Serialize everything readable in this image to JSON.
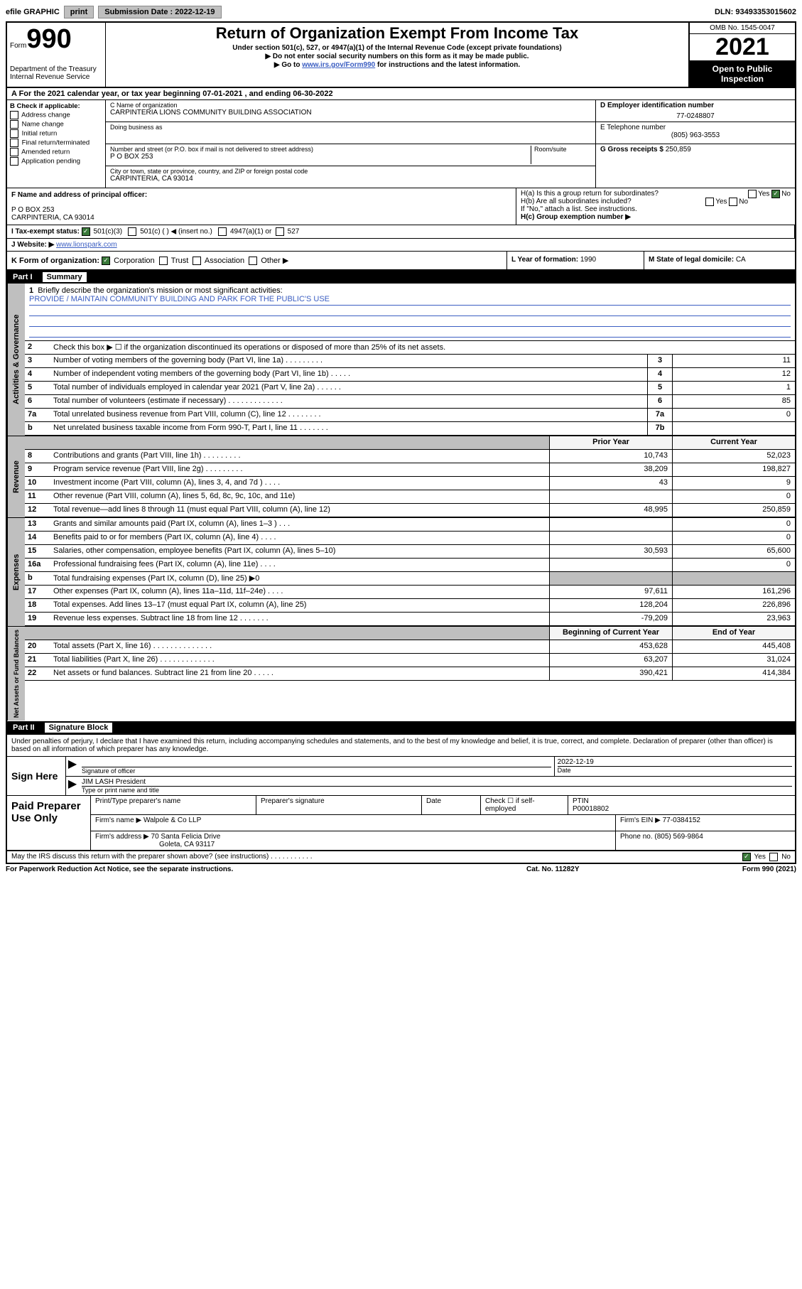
{
  "topbar": {
    "efile_label": "efile GRAPHIC",
    "print_btn": "print",
    "sub_date_label": "Submission Date : 2022-12-19",
    "dln": "DLN: 93493353015602"
  },
  "header": {
    "form_prefix": "Form",
    "form_number": "990",
    "dept": "Department of the Treasury",
    "irs": "Internal Revenue Service",
    "title": "Return of Organization Exempt From Income Tax",
    "sub1": "Under section 501(c), 527, or 4947(a)(1) of the Internal Revenue Code (except private foundations)",
    "sub2": "▶ Do not enter social security numbers on this form as it may be made public.",
    "sub3_prefix": "▶ Go to ",
    "sub3_link": "www.irs.gov/Form990",
    "sub3_suffix": " for instructions and the latest information.",
    "omb": "OMB No. 1545-0047",
    "year": "2021",
    "inspection1": "Open to Public",
    "inspection2": "Inspection"
  },
  "row_a": {
    "text": "A For the 2021 calendar year, or tax year beginning 07-01-2021   , and ending 06-30-2022"
  },
  "col_b": {
    "header": "B Check if applicable:",
    "items": [
      "Address change",
      "Name change",
      "Initial return",
      "Final return/terminated",
      "Amended return",
      "Application pending"
    ]
  },
  "col_c": {
    "name_label": "C Name of organization",
    "name": "CARPINTERIA LIONS COMMUNITY BUILDING ASSOCIATION",
    "dba_label": "Doing business as",
    "addr_label": "Number and street (or P.O. box if mail is not delivered to street address)",
    "room_label": "Room/suite",
    "addr": "P O BOX 253",
    "city_label": "City or town, state or province, country, and ZIP or foreign postal code",
    "city": "CARPINTERIA, CA  93014"
  },
  "col_d": {
    "ein_label": "D Employer identification number",
    "ein": "77-0248807",
    "phone_label": "E Telephone number",
    "phone": "(805) 963-3553",
    "gross_label": "G Gross receipts $",
    "gross": "250,859"
  },
  "row_f": {
    "label": "F  Name and address of principal officer:",
    "addr1": "P O BOX 253",
    "addr2": "CARPINTERIA, CA  93014"
  },
  "row_h": {
    "ha": "H(a)  Is this a group return for subordinates?",
    "hb": "H(b)  Are all subordinates included?",
    "hb_note": "If \"No,\" attach a list. See instructions.",
    "hc": "H(c)  Group exemption number ▶",
    "yes": "Yes",
    "no": "No"
  },
  "row_i": {
    "label": "I   Tax-exempt status:",
    "opt1": "501(c)(3)",
    "opt2": "501(c) (  ) ◀ (insert no.)",
    "opt3": "4947(a)(1) or",
    "opt4": "527"
  },
  "row_j": {
    "label": "J   Website: ▶",
    "url": "www.lionspark.com"
  },
  "row_k": {
    "label": "K Form of organization:",
    "opts": [
      "Corporation",
      "Trust",
      "Association",
      "Other ▶"
    ],
    "year_label": "L Year of formation: ",
    "year": "1990",
    "state_label": "M State of legal domicile: ",
    "state": "CA"
  },
  "part1": {
    "label": "Part I",
    "title": "Summary"
  },
  "governance": {
    "side": "Activities & Governance",
    "q1_label": "1",
    "q1": "Briefly describe the organization's mission or most significant activities:",
    "q1_ans": "PROVIDE / MAINTAIN COMMUNITY BUILDING AND PARK FOR THE PUBLIC'S USE",
    "q2_label": "2",
    "q2": "Check this box ▶ ☐  if the organization discontinued its operations or disposed of more than 25% of its net assets.",
    "rows": [
      {
        "n": "3",
        "desc": "Number of voting members of the governing body (Part VI, line 1a)   .    .    .    .    .    .    .    .    .",
        "box": "3",
        "val": "11"
      },
      {
        "n": "4",
        "desc": "Number of independent voting members of the governing body (Part VI, line 1b)    .    .    .    .    .",
        "box": "4",
        "val": "12"
      },
      {
        "n": "5",
        "desc": "Total number of individuals employed in calendar year 2021 (Part V, line 2a)   .    .    .    .    .    .",
        "box": "5",
        "val": "1"
      },
      {
        "n": "6",
        "desc": "Total number of volunteers (estimate if necessary)   .    .    .    .    .    .    .    .    .    .    .    .    .",
        "box": "6",
        "val": "85"
      },
      {
        "n": "7a",
        "desc": "Total unrelated business revenue from Part VIII, column (C), line 12   .    .    .    .    .    .    .    .",
        "box": "7a",
        "val": "0"
      },
      {
        "n": "b",
        "desc": "Net unrelated business taxable income from Form 990-T, Part I, line 11   .    .    .    .    .    .    .",
        "box": "7b",
        "val": ""
      }
    ]
  },
  "revenue": {
    "side": "Revenue",
    "header_py": "Prior Year",
    "header_cy": "Current Year",
    "rows": [
      {
        "n": "8",
        "desc": "Contributions and grants (Part VIII, line 1h)   .    .    .    .    .    .    .    .    .",
        "py": "10,743",
        "cy": "52,023"
      },
      {
        "n": "9",
        "desc": "Program service revenue (Part VIII, line 2g)   .    .    .    .    .    .    .    .    .",
        "py": "38,209",
        "cy": "198,827"
      },
      {
        "n": "10",
        "desc": "Investment income (Part VIII, column (A), lines 3, 4, and 7d )   .    .    .    .",
        "py": "43",
        "cy": "9"
      },
      {
        "n": "11",
        "desc": "Other revenue (Part VIII, column (A), lines 5, 6d, 8c, 9c, 10c, and 11e)",
        "py": "",
        "cy": "0"
      },
      {
        "n": "12",
        "desc": "Total revenue—add lines 8 through 11 (must equal Part VIII, column (A), line 12)",
        "py": "48,995",
        "cy": "250,859"
      }
    ]
  },
  "expenses": {
    "side": "Expenses",
    "rows": [
      {
        "n": "13",
        "desc": "Grants and similar amounts paid (Part IX, column (A), lines 1–3 )   .    .    .",
        "py": "",
        "cy": "0"
      },
      {
        "n": "14",
        "desc": "Benefits paid to or for members (Part IX, column (A), line 4)   .    .    .    .",
        "py": "",
        "cy": "0"
      },
      {
        "n": "15",
        "desc": "Salaries, other compensation, employee benefits (Part IX, column (A), lines 5–10)",
        "py": "30,593",
        "cy": "65,600"
      },
      {
        "n": "16a",
        "desc": "Professional fundraising fees (Part IX, column (A), line 11e)   .    .    .    .",
        "py": "",
        "cy": "0"
      },
      {
        "n": "b",
        "desc": "Total fundraising expenses (Part IX, column (D), line 25) ▶0",
        "py": "grey",
        "cy": "grey"
      },
      {
        "n": "17",
        "desc": "Other expenses (Part IX, column (A), lines 11a–11d, 11f–24e)   .    .    .    .",
        "py": "97,611",
        "cy": "161,296"
      },
      {
        "n": "18",
        "desc": "Total expenses. Add lines 13–17 (must equal Part IX, column (A), line 25)",
        "py": "128,204",
        "cy": "226,896"
      },
      {
        "n": "19",
        "desc": "Revenue less expenses. Subtract line 18 from line 12   .    .    .    .    .    .    .",
        "py": "-79,209",
        "cy": "23,963"
      }
    ]
  },
  "netassets": {
    "side": "Net Assets or Fund Balances",
    "header_py": "Beginning of Current Year",
    "header_cy": "End of Year",
    "rows": [
      {
        "n": "20",
        "desc": "Total assets (Part X, line 16)   .    .    .    .    .    .    .    .    .    .    .    .    .    .",
        "py": "453,628",
        "cy": "445,408"
      },
      {
        "n": "21",
        "desc": "Total liabilities (Part X, line 26)   .    .    .    .    .    .    .    .    .    .    .    .    .",
        "py": "63,207",
        "cy": "31,024"
      },
      {
        "n": "22",
        "desc": "Net assets or fund balances. Subtract line 21 from line 20   .    .    .    .    .",
        "py": "390,421",
        "cy": "414,384"
      }
    ]
  },
  "part2": {
    "label": "Part II",
    "title": "Signature Block",
    "penalty": "Under penalties of perjury, I declare that I have examined this return, including accompanying schedules and statements, and to the best of my knowledge and belief, it is true, correct, and complete. Declaration of preparer (other than officer) is based on all information of which preparer has any knowledge."
  },
  "sign": {
    "label": "Sign Here",
    "sig_officer": "Signature of officer",
    "date": "2022-12-19",
    "date_label": "Date",
    "name": "JIM LASH President",
    "name_label": "Type or print name and title"
  },
  "paid": {
    "label": "Paid Preparer Use Only",
    "col1": "Print/Type preparer's name",
    "col2": "Preparer's signature",
    "col3": "Date",
    "col4_check": "Check ☐ if self-employed",
    "col5": "PTIN",
    "ptin": "P00018802",
    "firm_name_label": "Firm's name    ▶",
    "firm_name": "Walpole & Co LLP",
    "firm_ein_label": "Firm's EIN ▶",
    "firm_ein": "77-0384152",
    "firm_addr_label": "Firm's address ▶",
    "firm_addr1": "70 Santa Felicia Drive",
    "firm_addr2": "Goleta, CA  93117",
    "phone_label": "Phone no.",
    "phone": "(805) 569-9864"
  },
  "footer": {
    "discuss": "May the IRS discuss this return with the preparer shown above? (see instructions)   .    .    .    .    .    .    .    .    .    .    .",
    "yes": "Yes",
    "no": "No",
    "paperwork": "For Paperwork Reduction Act Notice, see the separate instructions.",
    "cat": "Cat. No. 11282Y",
    "form": "Form 990 (2021)"
  }
}
